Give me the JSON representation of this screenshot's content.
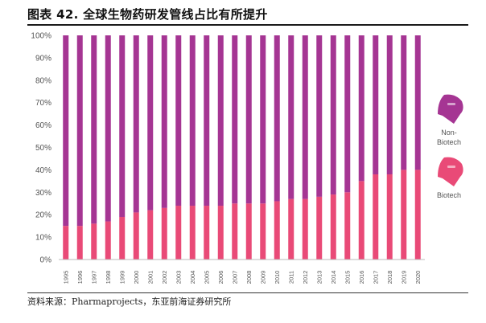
{
  "figure": {
    "title": "图表 42. 全球生物药研发管线占比有所提升",
    "source": "资料来源：Pharmaprojects，东亚前海证券研究所"
  },
  "legend": {
    "items": [
      {
        "label_lines": [
          "Non-",
          "Biotech"
        ],
        "color": "#a53593",
        "icon": "megaphone-icon"
      },
      {
        "label_lines": [
          "Biotech"
        ],
        "color": "#e94a77",
        "icon": "megaphone-icon"
      }
    ]
  },
  "chart_data": {
    "type": "bar",
    "stacked": true,
    "categories": [
      "1995",
      "1996",
      "1997",
      "1998",
      "1999",
      "2000",
      "2001",
      "2002",
      "2003",
      "2004",
      "2005",
      "2006",
      "2007",
      "2008",
      "2009",
      "2010",
      "2011",
      "2012",
      "2013",
      "2014",
      "2015",
      "2016",
      "2017",
      "2018",
      "2019",
      "2020"
    ],
    "series": [
      {
        "name": "Biotech",
        "color": "#e94a77",
        "values": [
          15,
          15,
          16,
          17,
          19,
          21,
          22,
          23,
          24,
          24,
          24,
          24,
          25,
          25,
          25,
          26,
          27,
          27,
          28,
          29,
          30,
          35,
          38,
          38,
          40,
          40
        ]
      },
      {
        "name": "Non-Biotech",
        "color": "#a53593",
        "values": [
          85,
          85,
          84,
          83,
          81,
          79,
          78,
          77,
          76,
          76,
          76,
          76,
          75,
          75,
          75,
          74,
          73,
          73,
          72,
          71,
          70,
          65,
          62,
          62,
          60,
          60
        ]
      }
    ],
    "y_ticks": [
      "0%",
      "10%",
      "20%",
      "30%",
      "40%",
      "50%",
      "60%",
      "70%",
      "80%",
      "90%",
      "100%"
    ],
    "ylim": [
      0,
      100
    ],
    "grid": false,
    "legend_position": "right"
  }
}
